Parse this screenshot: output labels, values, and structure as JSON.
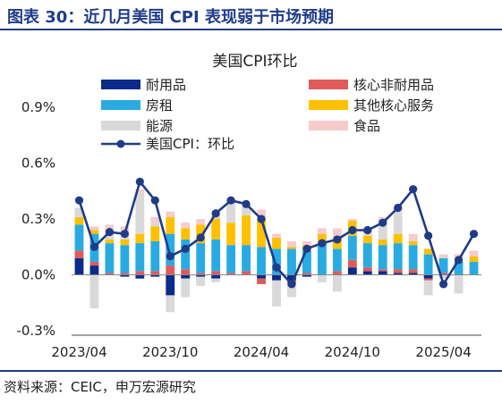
{
  "figure": {
    "title": "图表 30：近几月美国 CPI 表现弱于市场预期",
    "source": "资料来源：CEIC，申万宏源研究"
  },
  "colors": {
    "durables": "#0b2a8a",
    "core_other": "#e05a5a",
    "rent": "#29abe2",
    "other_core_services": "#ffc000",
    "energy": "#d9d9d9",
    "food": "#f8cbcb",
    "cpi_line": "#1f3c88"
  },
  "chart_data": {
    "type": "bar",
    "stacked": true,
    "title": "美国CPI环比",
    "xlabel": "",
    "ylabel": "",
    "ylim": [
      -0.3,
      0.9
    ],
    "yticks": [
      "-0.3%",
      "0.0%",
      "0.3%",
      "0.6%",
      "0.9%"
    ],
    "ytick_values": [
      -0.3,
      0.0,
      0.3,
      0.6,
      0.9
    ],
    "x_tick_labels": [
      "2023/04",
      "2023/10",
      "2024/04",
      "2024/10",
      "2025/04"
    ],
    "x_tick_indices": [
      0,
      6,
      12,
      18,
      24
    ],
    "categories": [
      "2023/04",
      "2023/05",
      "2023/06",
      "2023/07",
      "2023/08",
      "2023/09",
      "2023/10",
      "2023/11",
      "2023/12",
      "2024/01",
      "2024/02",
      "2024/03",
      "2024/04",
      "2024/05",
      "2024/06",
      "2024/07",
      "2024/08",
      "2024/09",
      "2024/10",
      "2024/11",
      "2024/12",
      "2025/01",
      "2025/02",
      "2025/03",
      "2025/04",
      "2025/05",
      "2025/06"
    ],
    "legend_position": "top",
    "series": [
      {
        "name": "耐用品",
        "key": "durables",
        "values": [
          0.09,
          0.05,
          0.0,
          -0.01,
          -0.02,
          -0.01,
          -0.11,
          -0.02,
          -0.01,
          -0.02,
          0.0,
          0.0,
          -0.02,
          -0.03,
          -0.03,
          -0.01,
          0.0,
          0.0,
          0.04,
          0.02,
          0.02,
          0.01,
          0.01,
          -0.02,
          0.0,
          0.0,
          0.0
        ]
      },
      {
        "name": "核心非耐用品",
        "key": "core_other",
        "values": [
          0.04,
          0.02,
          0.01,
          0.01,
          0.02,
          0.02,
          0.05,
          0.03,
          0.01,
          0.02,
          0.01,
          0.02,
          -0.03,
          0.0,
          -0.02,
          0.01,
          0.0,
          0.02,
          0.04,
          0.02,
          0.01,
          0.02,
          0.02,
          -0.01,
          0.01,
          0.0,
          0.0
        ]
      },
      {
        "name": "房租",
        "key": "rent",
        "values": [
          0.14,
          0.15,
          0.16,
          0.15,
          0.15,
          0.16,
          0.17,
          0.16,
          0.16,
          0.17,
          0.15,
          0.14,
          0.15,
          0.14,
          0.14,
          0.12,
          0.17,
          0.12,
          0.13,
          0.13,
          0.13,
          0.14,
          0.13,
          0.11,
          0.08,
          0.07,
          0.07
        ]
      },
      {
        "name": "其他核心服务",
        "key": "other_core_services",
        "values": [
          0.04,
          0.02,
          0.02,
          0.03,
          0.05,
          0.08,
          0.09,
          0.06,
          0.1,
          0.11,
          0.12,
          0.16,
          0.15,
          0.06,
          0.01,
          0.03,
          0.05,
          0.06,
          0.08,
          0.04,
          0.03,
          0.05,
          0.02,
          0.03,
          0.0,
          0.0,
          0.03
        ]
      },
      {
        "name": "能源",
        "key": "energy",
        "values": [
          0.05,
          -0.18,
          0.06,
          0.04,
          0.22,
          0.02,
          -0.09,
          -0.1,
          -0.05,
          -0.02,
          0.1,
          0.04,
          0.02,
          -0.14,
          -0.07,
          0.0,
          -0.04,
          -0.09,
          0.0,
          0.01,
          0.09,
          0.13,
          0.0,
          -0.08,
          -0.02,
          -0.1,
          0.0
        ]
      },
      {
        "name": "食品",
        "key": "food",
        "values": [
          0.0,
          0.02,
          0.02,
          0.03,
          0.02,
          0.03,
          0.03,
          0.03,
          0.03,
          0.03,
          0.02,
          0.01,
          0.03,
          0.02,
          0.03,
          0.02,
          0.03,
          0.05,
          0.01,
          0.03,
          0.03,
          0.01,
          0.04,
          0.0,
          0.02,
          0.04,
          0.03
        ]
      }
    ],
    "line": {
      "name": "美国CPI：环比",
      "values": [
        0.4,
        0.15,
        0.23,
        0.22,
        0.5,
        0.4,
        0.1,
        0.14,
        0.2,
        0.33,
        0.4,
        0.38,
        0.3,
        0.04,
        -0.05,
        0.14,
        0.17,
        0.19,
        0.24,
        0.24,
        0.28,
        0.36,
        0.46,
        0.21,
        -0.05,
        0.08,
        0.22
      ]
    }
  }
}
